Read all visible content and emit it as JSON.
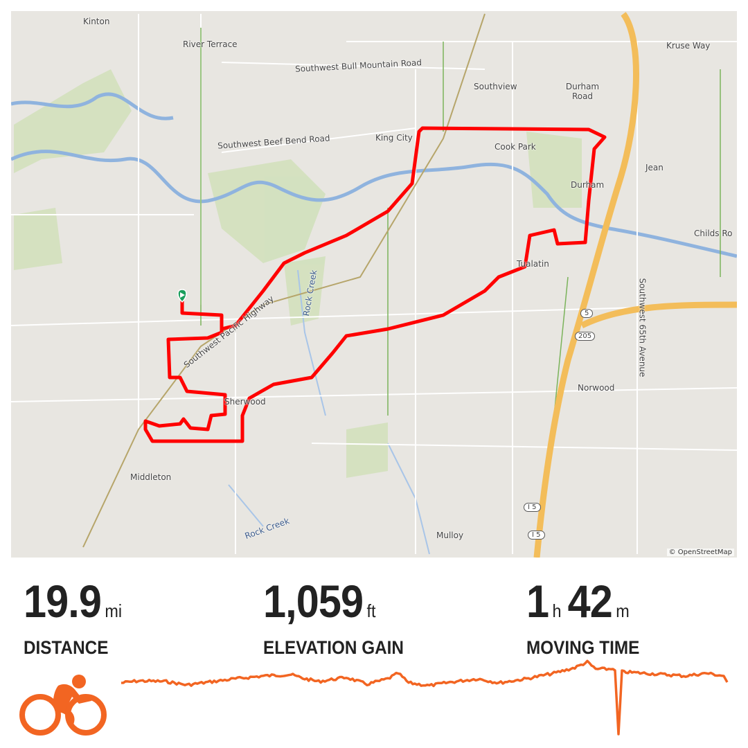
{
  "map": {
    "labels": [
      "Kinton",
      "River Terrace",
      "Southwest Bull Mountain Road",
      "Southview",
      "Durham Road",
      "Kruse Way",
      "King City",
      "Southwest Beef Bend Road",
      "Cook Park",
      "Jean",
      "Durham",
      "Childs Ro",
      "Tualatin",
      "Rock Creek",
      "Southwest Pacific Highway",
      "Southwest 65th Avenue",
      "5",
      "205",
      "Norwood",
      "Sherwood",
      "Middleton",
      "Rock Creek",
      "I 5",
      "I 5",
      "Mulloy"
    ],
    "attribution": "© OpenStreetMap",
    "route_color": "#ff0000",
    "start_marker_color": "#1a9e5c"
  },
  "stats": {
    "distance": {
      "value": "19.9",
      "unit": "mi",
      "label": "DISTANCE"
    },
    "elevation": {
      "value": "1,059",
      "unit": "ft",
      "label": "ELEVATION GAIN"
    },
    "time": {
      "hours": "1",
      "hours_unit": "h",
      "minutes": "42",
      "minutes_unit": "m",
      "label": "MOVING TIME"
    }
  },
  "activity": {
    "type_icon": "cycling-icon",
    "accent": "#f26522"
  }
}
